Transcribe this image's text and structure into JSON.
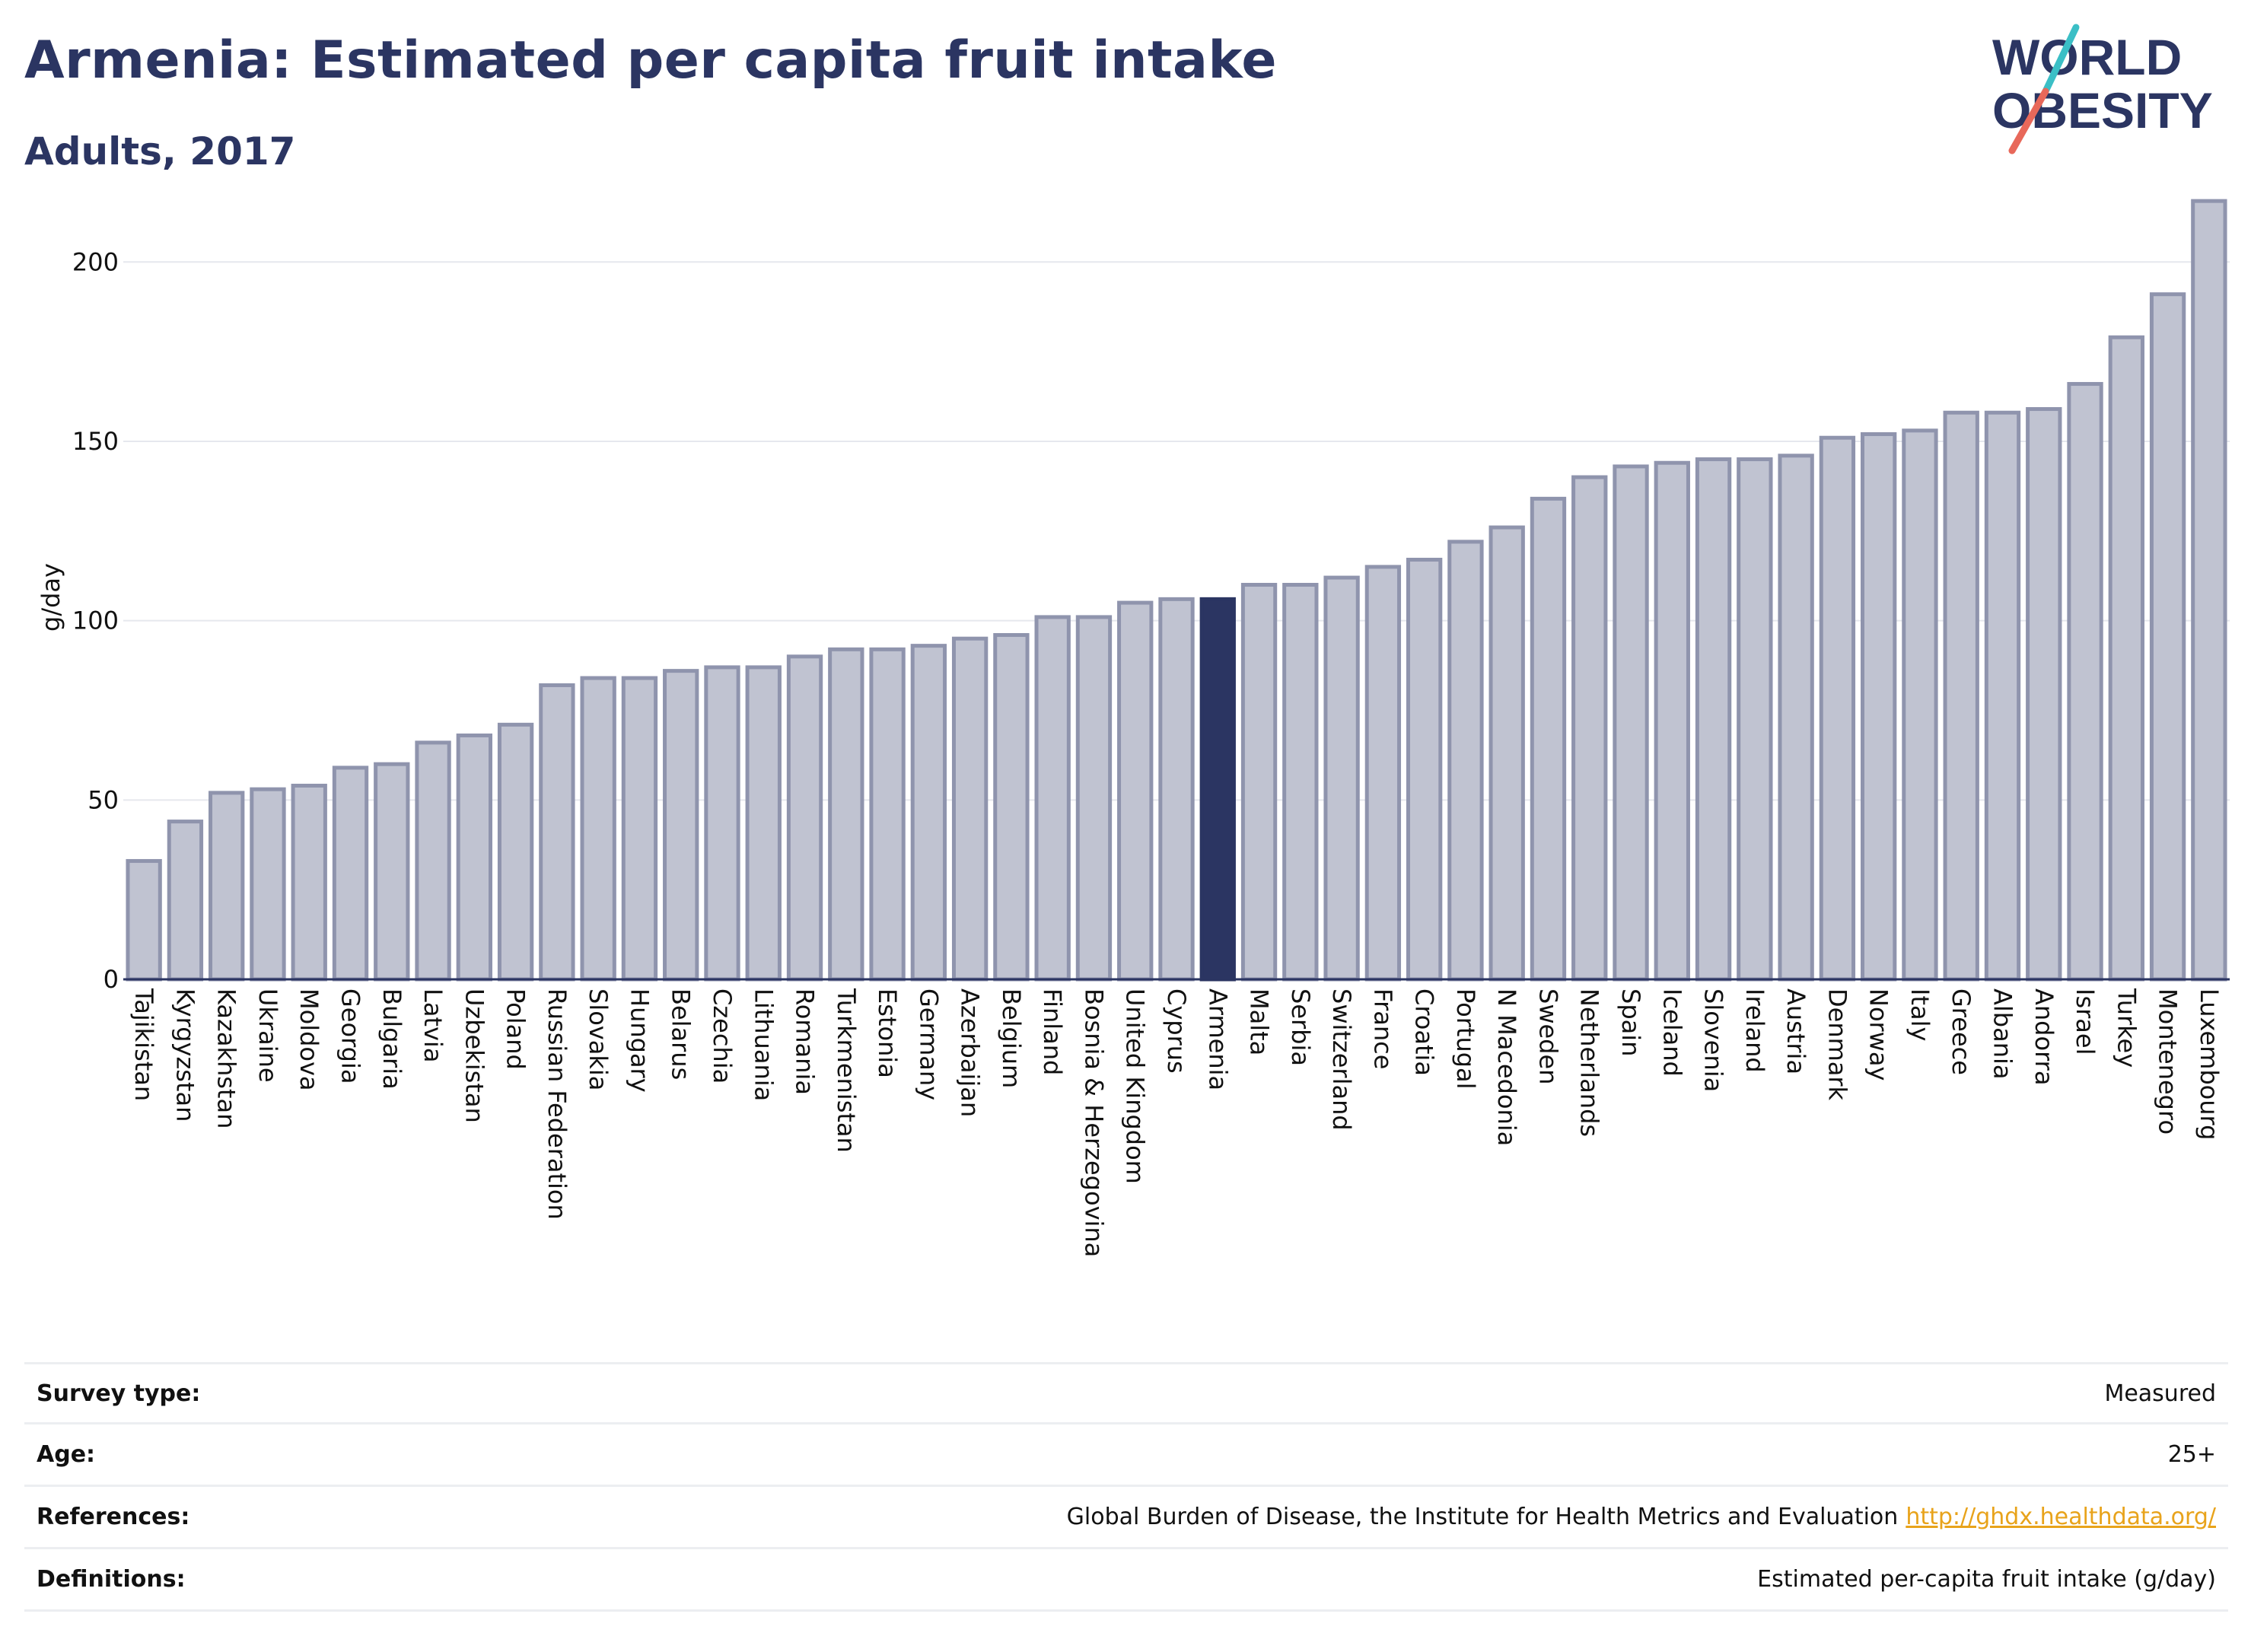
{
  "header": {
    "title": "Armenia: Estimated per capita fruit intake",
    "subtitle": "Adults, 2017"
  },
  "logo": {
    "line1": "WORLD",
    "line2": "OBESITY",
    "colors": {
      "text": "#2b3562",
      "slash_teal": "#3bbfc6",
      "slash_coral": "#e8685a"
    }
  },
  "colors": {
    "bar_default": "#c0c3d1",
    "bar_default_stroke": "#8f94ad",
    "bar_highlight": "#2b3562",
    "grid": "#e6e8ee",
    "axis": "#2b3562"
  },
  "chart_data": {
    "type": "bar",
    "ylabel": "g/day",
    "ylim": [
      0,
      220
    ],
    "yticks": [
      0,
      50,
      100,
      150,
      200
    ],
    "grid": true,
    "highlight": "Armenia",
    "categories": [
      "Tajikistan",
      "Kyrgyzstan",
      "Kazakhstan",
      "Ukraine",
      "Moldova",
      "Georgia",
      "Bulgaria",
      "Latvia",
      "Uzbekistan",
      "Poland",
      "Russian Federation",
      "Slovakia",
      "Hungary",
      "Belarus",
      "Czechia",
      "Lithuania",
      "Romania",
      "Turkmenistan",
      "Estonia",
      "Germany",
      "Azerbaijan",
      "Belgium",
      "Finland",
      "Bosnia & Herzegovina",
      "United Kingdom",
      "Cyprus",
      "Armenia",
      "Malta",
      "Serbia",
      "Switzerland",
      "France",
      "Croatia",
      "Portugal",
      "N Macedonia",
      "Sweden",
      "Netherlands",
      "Spain",
      "Iceland",
      "Slovenia",
      "Ireland",
      "Austria",
      "Denmark",
      "Norway",
      "Italy",
      "Greece",
      "Albania",
      "Andorra",
      "Israel",
      "Turkey",
      "Montenegro",
      "Luxembourg"
    ],
    "values": [
      33,
      44,
      52,
      53,
      54,
      59,
      60,
      66,
      68,
      71,
      82,
      84,
      84,
      86,
      87,
      87,
      90,
      92,
      92,
      93,
      95,
      96,
      101,
      101,
      105,
      106,
      106,
      110,
      110,
      112,
      115,
      117,
      122,
      126,
      134,
      140,
      143,
      144,
      145,
      145,
      146,
      151,
      152,
      153,
      158,
      158,
      159,
      166,
      179,
      191,
      217
    ]
  },
  "meta": [
    {
      "label": "Survey type:",
      "value": "Measured",
      "link": ""
    },
    {
      "label": "Age:",
      "value": "25+",
      "link": ""
    },
    {
      "label": "References:",
      "value": "Global Burden of Disease, the Institute for Health Metrics and Evaluation",
      "link": "http://ghdx.healthdata.org/"
    },
    {
      "label": "Definitions:",
      "value": "Estimated per-capita fruit intake (g/day)",
      "link": ""
    }
  ]
}
